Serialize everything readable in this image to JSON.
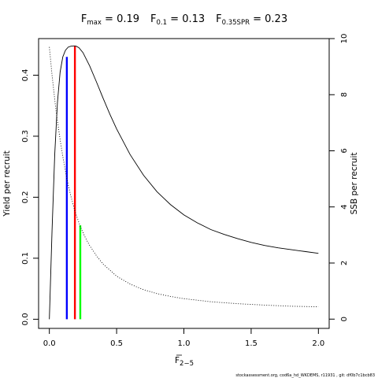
{
  "title": {
    "fmax_main": "F",
    "fmax_sub": "max",
    "fmax_value": " = 0.19",
    "f01_main": "F",
    "f01_sub": "0.1",
    "f01_value": " = 0.13",
    "f35_main": "F",
    "f35_sub": "0.35SPR",
    "f35_value": " = 0.23"
  },
  "footer": "stockassessment.org, cod6a_hd_WKDEMS, r11931 , git: df0b7c1bcb83",
  "chart_data": {
    "type": "line",
    "xlabel_main": "F",
    "xlabel_sub": "2−5",
    "ylabel_left": "Yield per recruit",
    "ylabel_right": "SSB per recruit",
    "xlim": [
      -0.08,
      2.08
    ],
    "ylim_left": [
      -0.015,
      0.46
    ],
    "ylim_right": [
      -0.33,
      10.0
    ],
    "x_ticks": [
      0.0,
      0.5,
      1.0,
      1.5,
      2.0
    ],
    "x_tick_labels": [
      "0.0",
      "0.5",
      "1.0",
      "1.5",
      "2.0"
    ],
    "y_left_ticks": [
      0.0,
      0.1,
      0.2,
      0.3,
      0.4
    ],
    "y_left_tick_labels": [
      "0.0",
      "0.1",
      "0.2",
      "0.3",
      "0.4"
    ],
    "y_right_ticks": [
      0,
      2,
      4,
      6,
      8,
      10
    ],
    "y_right_tick_labels": [
      "0",
      "2",
      "4",
      "6",
      "8",
      "10"
    ],
    "series": [
      {
        "style": "solid",
        "axis": "left",
        "x": [
          0.0,
          0.02,
          0.04,
          0.06,
          0.08,
          0.1,
          0.12,
          0.14,
          0.16,
          0.18,
          0.19,
          0.2,
          0.22,
          0.25,
          0.3,
          0.35,
          0.4,
          0.45,
          0.5,
          0.6,
          0.7,
          0.8,
          0.9,
          1.0,
          1.1,
          1.2,
          1.3,
          1.4,
          1.5,
          1.6,
          1.7,
          1.8,
          1.9,
          2.0
        ],
        "y": [
          0.0,
          0.145,
          0.27,
          0.355,
          0.405,
          0.43,
          0.441,
          0.446,
          0.4475,
          0.448,
          0.448,
          0.4475,
          0.445,
          0.437,
          0.415,
          0.389,
          0.362,
          0.336,
          0.312,
          0.27,
          0.236,
          0.209,
          0.188,
          0.171,
          0.158,
          0.147,
          0.139,
          0.132,
          0.126,
          0.121,
          0.117,
          0.114,
          0.111,
          0.108
        ]
      },
      {
        "style": "dotted",
        "axis": "right",
        "x": [
          0.0,
          0.02,
          0.05,
          0.08,
          0.1,
          0.13,
          0.16,
          0.19,
          0.23,
          0.27,
          0.3,
          0.35,
          0.4,
          0.5,
          0.6,
          0.7,
          0.8,
          0.9,
          1.0,
          1.2,
          1.4,
          1.6,
          1.8,
          2.0
        ],
        "y": [
          9.7,
          8.7,
          7.4,
          6.4,
          5.8,
          5.0,
          4.38,
          3.85,
          3.3,
          2.88,
          2.62,
          2.26,
          1.96,
          1.53,
          1.25,
          1.05,
          0.91,
          0.81,
          0.73,
          0.62,
          0.55,
          0.5,
          0.46,
          0.44
        ]
      }
    ],
    "reference_lines": [
      {
        "name": "F0.1",
        "x": 0.13,
        "y_top": 0.43,
        "color": "#0000ff"
      },
      {
        "name": "Fmax",
        "x": 0.19,
        "y_top": 0.448,
        "color": "#ff0000"
      },
      {
        "name": "F0.35SPR",
        "x": 0.23,
        "y_top": 0.154,
        "color": "#00ff00"
      }
    ]
  }
}
